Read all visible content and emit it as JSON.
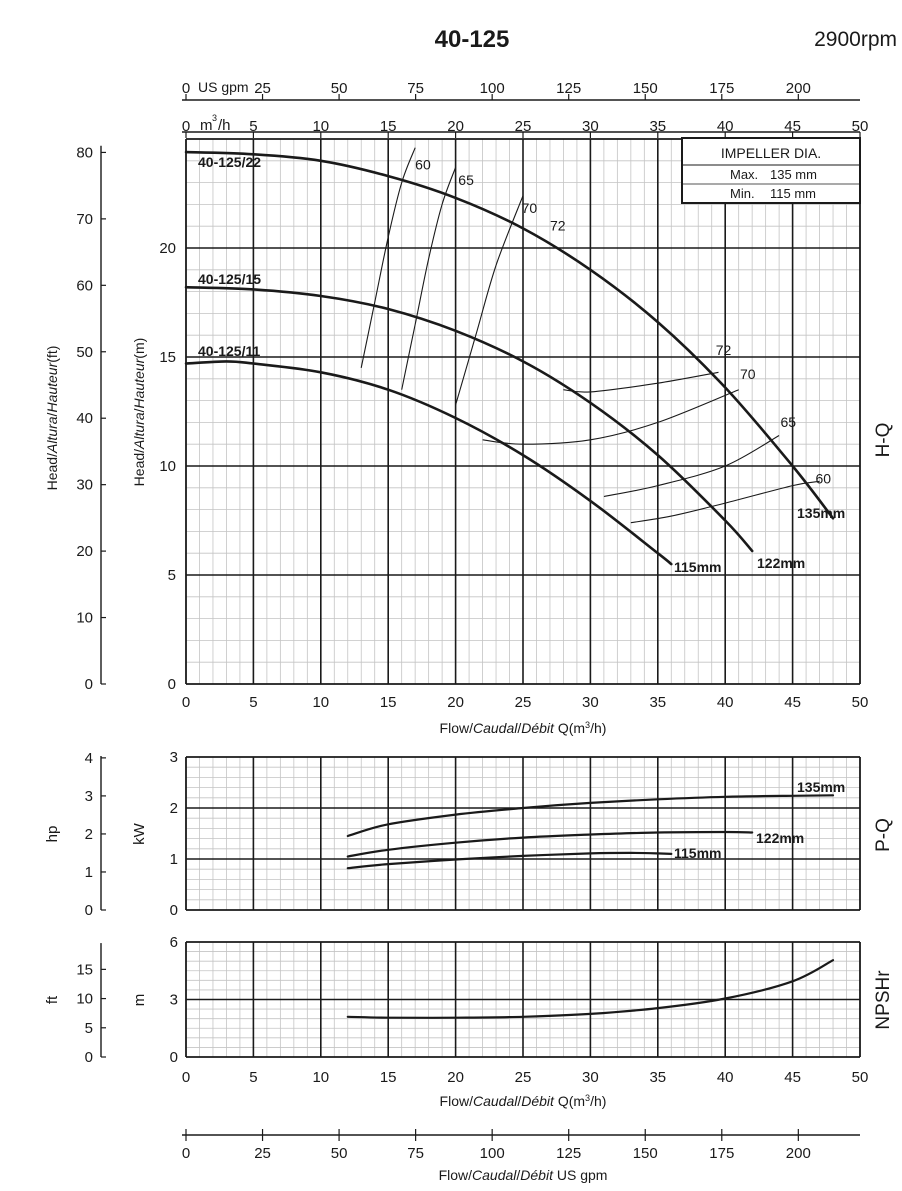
{
  "header": {
    "title": "40-125",
    "speed": "2900rpm"
  },
  "impeller": {
    "title": "IMPELLER DIA.",
    "max_label": "Max.",
    "max_value": "135 mm",
    "min_label": "Min.",
    "min_value": "115 mm"
  },
  "colors": {
    "curve": "#1a1a1a",
    "grid": "#c4c4c4",
    "major_grid": "#1a1a1a",
    "background": "#ffffff"
  },
  "chart_data": [
    {
      "type": "line",
      "name": "H-Q",
      "side_label": "H-Q",
      "xlabel_parts": [
        "Flow/",
        "Caudal",
        "/",
        "Débit",
        " Q(m",
        "3",
        "/h)"
      ],
      "ylabel_m_parts": [
        "Head/",
        "Altura",
        "/",
        "Hauteur",
        "(m)"
      ],
      "ylabel_ft_parts": [
        "Head/",
        "Altura",
        "/",
        "Hauteur",
        "(ft)"
      ],
      "xlim": [
        0,
        50
      ],
      "ylim": [
        0,
        25
      ],
      "x_ticks": [
        0,
        5,
        10,
        15,
        20,
        25,
        30,
        35,
        40,
        45,
        50
      ],
      "y_ticks_m": [
        5,
        10,
        15,
        20
      ],
      "y_ticks_ft": [
        0,
        10,
        20,
        30,
        40,
        50,
        60,
        70,
        80
      ],
      "top_axis_m3h": {
        "label_prefix": "m",
        "label_sup": "3",
        "label_suffix": "/h",
        "ticks": [
          0,
          5,
          10,
          15,
          20,
          25,
          30,
          35,
          40,
          45,
          50
        ]
      },
      "top_axis_usgpm": {
        "label": "US gpm",
        "ticks": [
          0,
          25,
          50,
          75,
          100,
          125,
          150,
          175,
          200
        ]
      },
      "series": [
        {
          "name": "135mm",
          "model": "40-125/22",
          "x": [
            0,
            5,
            10,
            15,
            20,
            25,
            30,
            35,
            40,
            45,
            48
          ],
          "y": [
            24.4,
            24.3,
            24.0,
            23.3,
            22.3,
            20.9,
            19.0,
            16.6,
            13.6,
            10.0,
            7.6
          ]
        },
        {
          "name": "122mm",
          "model": "40-125/15",
          "x": [
            0,
            5,
            10,
            15,
            20,
            25,
            30,
            35,
            40,
            42
          ],
          "y": [
            18.2,
            18.1,
            17.8,
            17.2,
            16.2,
            14.8,
            12.9,
            10.5,
            7.5,
            6.1
          ]
        },
        {
          "name": "115mm",
          "model": "40-125/11",
          "x": [
            0,
            3,
            5,
            10,
            15,
            20,
            25,
            30,
            35,
            36
          ],
          "y": [
            14.7,
            14.8,
            14.7,
            14.3,
            13.5,
            12.2,
            10.5,
            8.4,
            6.0,
            5.5
          ]
        }
      ],
      "efficiency_contours": [
        {
          "label": "60",
          "x": [
            13,
            14,
            15,
            16,
            17
          ],
          "y": [
            14.5,
            17.5,
            20.5,
            23.0,
            24.6
          ]
        },
        {
          "label": "60",
          "x": [
            16,
            17,
            18,
            19,
            20
          ],
          "y": [
            13.5,
            16.5,
            19.5,
            22.0,
            23.7
          ]
        },
        {
          "label": "65",
          "x": [
            20,
            21.5,
            23,
            25
          ],
          "y": [
            12.8,
            16.0,
            19.2,
            22.4
          ]
        },
        {
          "label": "60",
          "x": [
            33,
            36,
            40,
            45,
            47
          ],
          "y": [
            7.4,
            7.7,
            8.3,
            9.1,
            9.3
          ]
        },
        {
          "label": "65",
          "x": [
            31,
            35,
            40,
            44
          ],
          "y": [
            8.6,
            9.1,
            10.0,
            11.4
          ]
        },
        {
          "label": "70",
          "x": [
            22,
            25,
            30,
            35,
            41
          ],
          "y": [
            11.2,
            11.0,
            11.2,
            12.0,
            13.5
          ]
        },
        {
          "label": "72",
          "x": [
            28,
            30,
            35,
            39.5
          ],
          "y": [
            13.5,
            13.4,
            13.8,
            14.3
          ]
        }
      ],
      "efficiency_labels": [
        {
          "text": "60",
          "x": 17,
          "y": 23.6
        },
        {
          "text": "65",
          "x": 20.2,
          "y": 22.9
        },
        {
          "text": "70",
          "x": 24.9,
          "y": 21.6
        },
        {
          "text": "72",
          "x": 27,
          "y": 20.8
        },
        {
          "text": "72",
          "x": 39.3,
          "y": 15.1
        },
        {
          "text": "70",
          "x": 41.1,
          "y": 14.0
        },
        {
          "text": "65",
          "x": 44.1,
          "y": 11.8
        },
        {
          "text": "60",
          "x": 46.7,
          "y": 9.2
        }
      ]
    },
    {
      "type": "line",
      "name": "P-Q",
      "side_label": "P-Q",
      "ylabel_kw": "kW",
      "ylabel_hp": "hp",
      "xlim": [
        0,
        50
      ],
      "ylim": [
        0,
        3
      ],
      "y_ticks_kw": [
        0,
        1,
        2,
        3
      ],
      "y_ticks_hp": [
        0,
        1,
        2,
        3,
        4
      ],
      "series": [
        {
          "name": "135mm",
          "x": [
            12,
            15,
            20,
            25,
            30,
            35,
            40,
            45,
            48
          ],
          "y": [
            1.45,
            1.68,
            1.87,
            2.0,
            2.1,
            2.17,
            2.22,
            2.24,
            2.25
          ]
        },
        {
          "name": "122mm",
          "x": [
            12,
            15,
            20,
            25,
            30,
            35,
            40,
            42
          ],
          "y": [
            1.05,
            1.18,
            1.32,
            1.42,
            1.48,
            1.52,
            1.53,
            1.52
          ]
        },
        {
          "name": "115mm",
          "x": [
            12,
            15,
            20,
            25,
            30,
            33,
            35,
            36
          ],
          "y": [
            0.82,
            0.9,
            0.99,
            1.06,
            1.11,
            1.12,
            1.11,
            1.1
          ]
        }
      ]
    },
    {
      "type": "line",
      "name": "NPSHr",
      "side_label": "NPSHr",
      "ylabel_m": "m",
      "ylabel_ft": "ft",
      "xlabel_parts": [
        "Flow/",
        "Caudal",
        "/",
        "Débit",
        " Q(m",
        "3",
        "/h)"
      ],
      "xlim": [
        0,
        50
      ],
      "ylim": [
        0,
        6
      ],
      "y_ticks_m": [
        0,
        3,
        6
      ],
      "y_ticks_ft": [
        0,
        5,
        10,
        15
      ],
      "series": [
        {
          "name": "NPSHr",
          "x": [
            12,
            15,
            20,
            25,
            30,
            35,
            40,
            45,
            48
          ],
          "y": [
            2.1,
            2.05,
            2.05,
            2.1,
            2.25,
            2.55,
            3.05,
            3.95,
            5.05
          ]
        }
      ]
    },
    {
      "type": "axis",
      "name": "US gpm axis",
      "label_parts": [
        "Flow/",
        "Caudal",
        "/",
        "Débit",
        "  US gpm"
      ],
      "ticks": [
        0,
        25,
        50,
        75,
        100,
        125,
        150,
        175,
        200
      ]
    }
  ]
}
